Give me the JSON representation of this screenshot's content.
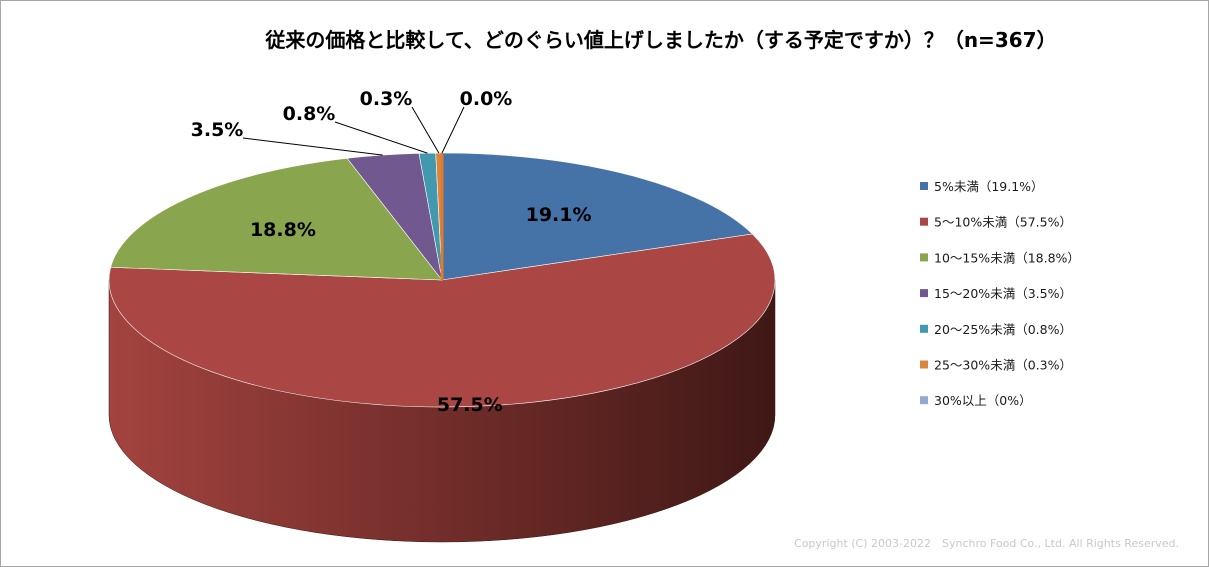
{
  "chart_data": {
    "type": "pie",
    "title": "従来の価格と比較して、どのぐらい値上げしましたか（する予定ですか）？（n=367）",
    "categories": [
      "5%未満",
      "5～10%未満",
      "10～15%未満",
      "15～20%未満",
      "20～25%未満",
      "25～30%未満",
      "30%以上"
    ],
    "values": [
      19.1,
      57.5,
      18.8,
      3.5,
      0.8,
      0.3,
      0.0
    ],
    "data_labels": [
      "19.1%",
      "57.5%",
      "18.8%",
      "3.5%",
      "0.8%",
      "0.3%",
      "0.0%"
    ],
    "legend_entries": [
      "5%未満（19.1%）",
      "5～10%未満（57.5%）",
      "10～15%未満（18.8%）",
      "15～20%未満（3.5%）",
      "20～25%未満（0.8%）",
      "25～30%未満（0.3%）",
      "30%以上（0%）"
    ],
    "colors": [
      "#4572A7",
      "#AA4643",
      "#89A54E",
      "#71588F",
      "#4198AF",
      "#DB843D",
      "#93A9CF"
    ],
    "legend_position": "right",
    "style": "3d-pie"
  },
  "footer": {
    "copyright": "Copyright (C) 2003-2022　Synchro Food Co., Ltd. All Rights Reserved."
  }
}
